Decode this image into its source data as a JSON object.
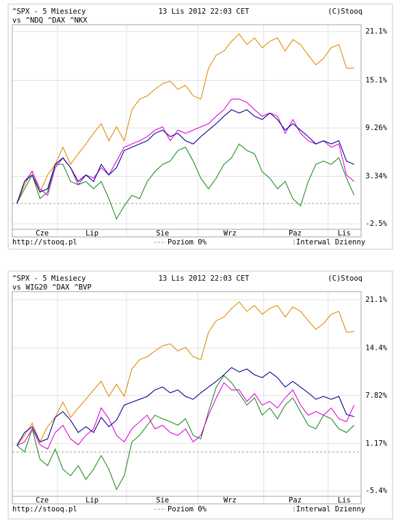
{
  "chart_data": [
    {
      "type": "line",
      "title": "^SPX - 5 Miesiecy",
      "subtitle": "13 Lis 2012 22:03 CET",
      "credit": "(C)Stooq",
      "legend_prefix": "vs",
      "source": "http://stooq.pl",
      "baseline": 0,
      "baseline_label": "Poziom 0%",
      "interval": "Interwal Dzienny",
      "title_color": "#0000c8",
      "grid": true,
      "x": [
        0,
        1,
        2,
        3,
        4,
        5,
        6,
        7,
        8,
        9,
        10,
        11,
        12,
        13,
        14,
        15,
        16,
        17,
        18,
        19,
        20,
        21,
        22,
        23,
        24,
        25,
        26,
        27,
        28,
        29,
        30,
        31,
        32,
        33,
        34,
        35,
        36,
        37,
        38,
        39,
        40,
        41,
        42,
        43,
        44
      ],
      "xlim": [
        -0.6,
        44.9
      ],
      "xticks": [
        {
          "value": 3.3,
          "label": "Cze"
        },
        {
          "value": 9.8,
          "label": "Lip"
        },
        {
          "value": 19,
          "label": "Sie"
        },
        {
          "value": 27.8,
          "label": "Wrz"
        },
        {
          "value": 36.3,
          "label": "Paz"
        },
        {
          "value": 42.7,
          "label": "Lis"
        }
      ],
      "xgrid": [
        5.3,
        14.3,
        23.6,
        32.2,
        40.6
      ],
      "ylim": [
        -3.17,
        21.94
      ],
      "yticks": [
        {
          "value": -2.5,
          "label": "-2.5%"
        },
        {
          "value": 3.34,
          "label": "3.34%"
        },
        {
          "value": 9.26,
          "label": "9.26%"
        },
        {
          "value": 15.1,
          "label": "15.1%"
        },
        {
          "value": 21.1,
          "label": "21.1%"
        }
      ],
      "series": [
        {
          "color": "#00008b",
          "values": [
            0,
            2.7,
            3.5,
            1.4,
            1.8,
            4.8,
            5.6,
            4.4,
            2.7,
            3.5,
            2.7,
            4.8,
            3.5,
            4.4,
            6.5,
            6.9,
            7.3,
            7.7,
            8.6,
            9.0,
            8.2,
            8.6,
            7.7,
            7.3,
            8.2,
            9.0,
            9.8,
            10.7,
            11.5,
            11.1,
            11.5,
            10.7,
            10.3,
            11.1,
            10.3,
            9.0,
            9.8,
            9.0,
            8.2,
            7.3,
            7.7,
            7.3,
            7.7,
            5.2,
            4.8
          ]
        },
        {
          "name": "^NDQ",
          "color": "#e000e0",
          "values": [
            0,
            2.7,
            3.9,
            1.8,
            1.0,
            4.4,
            5.6,
            4.4,
            2.3,
            3.5,
            3.1,
            4.4,
            3.5,
            5.2,
            6.9,
            7.3,
            7.7,
            8.2,
            9.0,
            9.4,
            7.7,
            9.0,
            8.6,
            9.0,
            9.4,
            9.8,
            10.7,
            11.5,
            12.8,
            12.8,
            12.4,
            11.5,
            10.7,
            11.1,
            10.7,
            8.6,
            10.3,
            8.6,
            7.7,
            7.3,
            7.7,
            6.9,
            7.3,
            3.5,
            2.7
          ]
        },
        {
          "name": "^DAX",
          "color": "#e08a00",
          "values": [
            0,
            2.3,
            4.0,
            1.4,
            3.5,
            4.8,
            6.9,
            4.8,
            6.1,
            7.3,
            8.6,
            9.8,
            7.7,
            9.4,
            7.7,
            11.5,
            12.8,
            13.2,
            14.0,
            14.7,
            15.0,
            14.0,
            14.5,
            13.2,
            12.8,
            16.6,
            18.2,
            18.7,
            19.9,
            20.8,
            19.5,
            20.3,
            19.1,
            19.9,
            20.3,
            18.7,
            20.1,
            19.5,
            18.2,
            17.0,
            17.8,
            19.1,
            19.5,
            16.6,
            16.6
          ]
        },
        {
          "name": "^NKX",
          "color": "#1e8c1e",
          "values": [
            0,
            1.8,
            3.5,
            0.6,
            1.4,
            4.8,
            4.8,
            2.7,
            2.3,
            2.7,
            1.8,
            2.7,
            0.6,
            -1.9,
            -0.3,
            1.0,
            0.6,
            2.7,
            3.9,
            4.8,
            5.2,
            6.5,
            6.9,
            5.2,
            3.1,
            1.8,
            3.1,
            4.8,
            5.6,
            7.3,
            6.5,
            6.1,
            3.9,
            3.1,
            1.8,
            2.7,
            0.6,
            -0.3,
            2.7,
            4.8,
            5.2,
            4.8,
            5.6,
            3.1,
            1.0
          ]
        }
      ]
    },
    {
      "type": "line",
      "title": "^SPX - 5 Miesiecy",
      "subtitle": "13 Lis 2012 22:03 CET",
      "credit": "(C)Stooq",
      "legend_prefix": "vs",
      "source": "http://stooq.pl",
      "baseline": 0,
      "baseline_label": "Poziom 0%",
      "interval": "Interwal Dzienny",
      "title_color": "#0000c8",
      "grid": true,
      "x": [
        0,
        1,
        2,
        3,
        4,
        5,
        6,
        7,
        8,
        9,
        10,
        11,
        12,
        13,
        14,
        15,
        16,
        17,
        18,
        19,
        20,
        21,
        22,
        23,
        24,
        25,
        26,
        27,
        28,
        29,
        30,
        31,
        32,
        33,
        34,
        35,
        36,
        37,
        38,
        39,
        40,
        41,
        42,
        43,
        44
      ],
      "xlim": [
        -0.6,
        44.9
      ],
      "xticks": [
        {
          "value": 3.3,
          "label": "Cze"
        },
        {
          "value": 9.8,
          "label": "Lip"
        },
        {
          "value": 19,
          "label": "Sie"
        },
        {
          "value": 27.8,
          "label": "Wrz"
        },
        {
          "value": 36.3,
          "label": "Paz"
        },
        {
          "value": 42.7,
          "label": "Lis"
        }
      ],
      "xgrid": [
        5.3,
        14.3,
        23.6,
        32.2,
        40.6
      ],
      "ylim": [
        -6.15,
        22.23
      ],
      "yticks": [
        {
          "value": -5.4,
          "label": "-5.4%"
        },
        {
          "value": 1.17,
          "label": "1.17%"
        },
        {
          "value": 7.82,
          "label": "7.82%"
        },
        {
          "value": 14.4,
          "label": "14.4%"
        },
        {
          "value": 21.1,
          "label": "21.1%"
        }
      ],
      "series": [
        {
          "color": "#00008b",
          "values": [
            0.9,
            2.7,
            3.5,
            1.4,
            1.8,
            4.8,
            5.6,
            4.4,
            2.7,
            3.5,
            2.7,
            4.8,
            3.5,
            4.4,
            6.5,
            6.9,
            7.3,
            7.7,
            8.6,
            9.0,
            8.2,
            8.6,
            7.7,
            7.3,
            8.2,
            9.0,
            9.8,
            10.7,
            11.7,
            11.1,
            11.5,
            10.7,
            10.3,
            11.1,
            10.3,
            9.0,
            9.8,
            9.0,
            8.2,
            7.3,
            7.7,
            7.3,
            7.7,
            5.2,
            4.9
          ]
        },
        {
          "name": "WIG20",
          "color": "#e000e0",
          "values": [
            0.9,
            1.4,
            3.2,
            1.0,
            0.4,
            2.7,
            3.7,
            1.8,
            1.0,
            2.3,
            3.2,
            6.1,
            4.6,
            2.3,
            1.4,
            3.2,
            4.2,
            5.1,
            3.2,
            3.7,
            2.7,
            2.3,
            3.2,
            1.4,
            2.3,
            5.1,
            7.5,
            9.6,
            8.6,
            8.6,
            7.0,
            8.1,
            6.5,
            7.0,
            6.1,
            7.5,
            8.6,
            6.5,
            5.1,
            5.6,
            5.1,
            6.1,
            4.6,
            4.2,
            6.5
          ]
        },
        {
          "name": "^DAX",
          "color": "#e08a00",
          "values": [
            0.9,
            2.3,
            4.0,
            1.4,
            3.5,
            4.8,
            6.9,
            4.8,
            6.1,
            7.3,
            8.6,
            9.8,
            7.7,
            9.4,
            7.7,
            11.5,
            12.8,
            13.2,
            14.0,
            14.7,
            15.0,
            14.0,
            14.5,
            13.2,
            12.8,
            16.6,
            18.2,
            18.7,
            19.9,
            20.8,
            19.5,
            20.3,
            19.1,
            19.9,
            20.3,
            18.7,
            20.1,
            19.5,
            18.2,
            17.0,
            17.8,
            19.1,
            19.5,
            16.6,
            16.7
          ]
        },
        {
          "name": "^BVP",
          "color": "#1e8c1e",
          "values": [
            0.9,
            0.0,
            3.2,
            -1.0,
            -1.9,
            0.4,
            -2.4,
            -3.3,
            -1.9,
            -3.8,
            -2.4,
            -0.5,
            -2.4,
            -5.2,
            -3.3,
            1.4,
            2.3,
            3.7,
            5.1,
            4.6,
            4.2,
            3.7,
            4.6,
            2.3,
            1.8,
            5.6,
            9.0,
            10.6,
            9.6,
            8.1,
            6.5,
            7.5,
            5.1,
            6.1,
            4.6,
            6.5,
            7.5,
            5.6,
            3.7,
            3.2,
            5.1,
            4.6,
            3.2,
            2.7,
            3.7
          ]
        }
      ]
    }
  ]
}
